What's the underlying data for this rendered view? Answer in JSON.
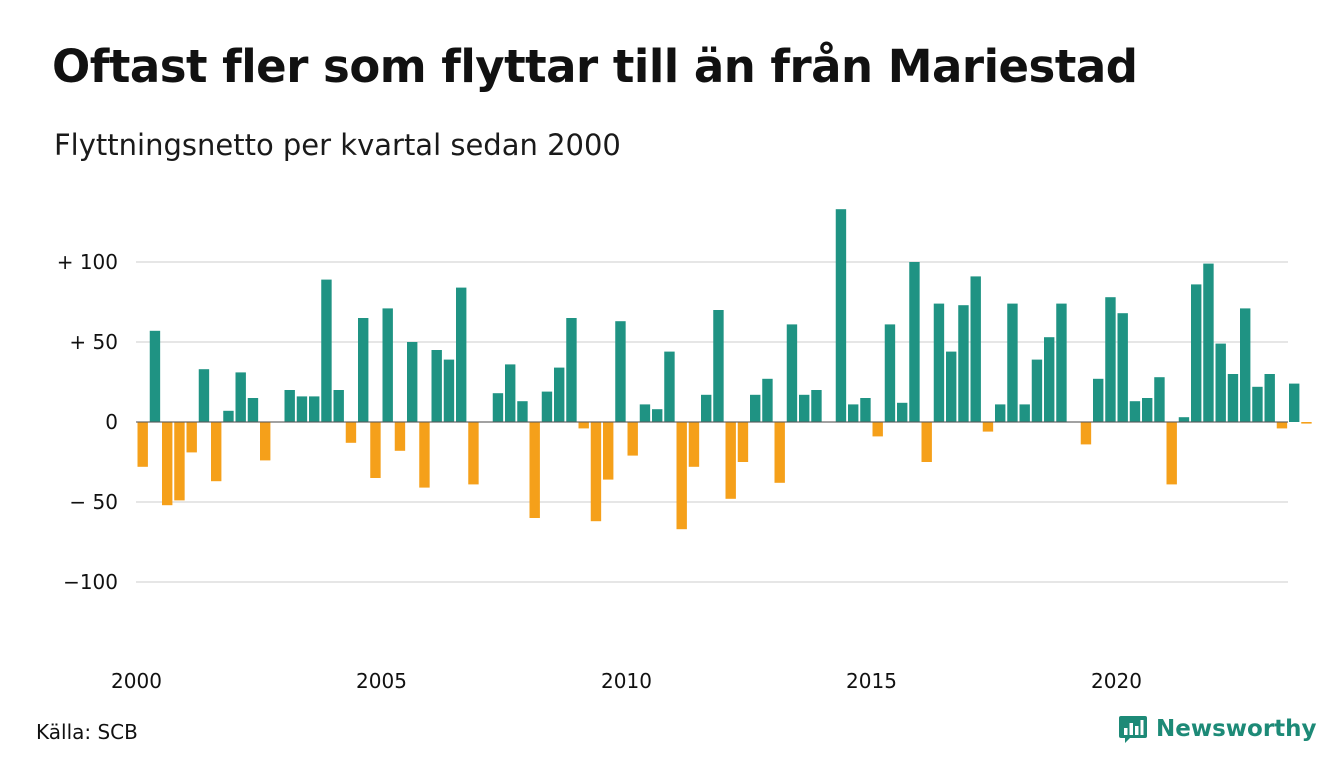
{
  "title": "Oftast fler som flyttar till än från Mariestad",
  "subtitle": "Flyttningsnetto per kvartal sedan 2000",
  "source": "Källa: SCB",
  "brand": {
    "name": "Newsworthy",
    "icon": "bar-chart-logo-icon"
  },
  "colors": {
    "positive": "#1f9383",
    "negative": "#f5a01a",
    "grid": "#dddddd",
    "brand": "#1d8a77"
  },
  "chart_data": {
    "type": "bar",
    "ylim": [
      -130,
      135
    ],
    "yticks": [
      {
        "value": 100,
        "label": "+ 100"
      },
      {
        "value": 50,
        "label": "+  50"
      },
      {
        "value": 0,
        "label": "0"
      },
      {
        "value": -50,
        "label": "− 50"
      },
      {
        "value": -100,
        "label": "−100"
      }
    ],
    "xticks": [
      {
        "year": 2000,
        "label": "2000"
      },
      {
        "year": 2005,
        "label": "2005"
      },
      {
        "year": 2010,
        "label": "2010"
      },
      {
        "year": 2015,
        "label": "2015"
      },
      {
        "year": 2020,
        "label": "2020"
      }
    ],
    "grid": true,
    "start_year": 2000,
    "values": [
      -28,
      57,
      -52,
      -49,
      -19,
      33,
      -37,
      7,
      31,
      15,
      -24,
      0,
      20,
      16,
      16,
      89,
      20,
      -13,
      65,
      -35,
      71,
      -18,
      50,
      -41,
      45,
      39,
      84,
      -39,
      0,
      18,
      36,
      13,
      -60,
      19,
      34,
      65,
      -4,
      -62,
      -36,
      63,
      -21,
      11,
      8,
      44,
      -67,
      -28,
      17,
      70,
      -48,
      -25,
      17,
      27,
      -38,
      61,
      17,
      20,
      0,
      133,
      11,
      15,
      -9,
      61,
      12,
      100,
      -25,
      74,
      44,
      73,
      91,
      -6,
      11,
      74,
      11,
      39,
      53,
      74,
      0,
      -14,
      27,
      78,
      68,
      13,
      15,
      28,
      -39,
      3,
      86,
      99,
      49,
      30,
      71,
      22,
      30,
      -4,
      24,
      -1
    ]
  }
}
